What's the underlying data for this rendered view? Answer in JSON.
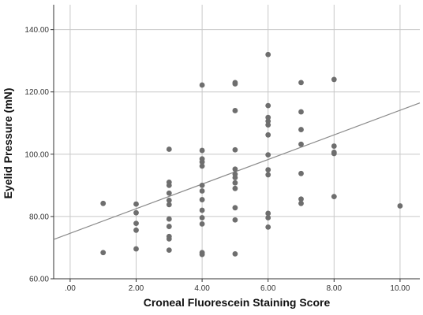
{
  "chart_data": {
    "type": "scatter",
    "title": "",
    "xlabel": "Croneal Fluorescein Staining Score",
    "ylabel": "Eyelid Pressure (mN)",
    "xlim": [
      -0.5,
      10.6
    ],
    "ylim": [
      60,
      148
    ],
    "x_ticks": [
      0,
      2,
      4,
      6,
      8,
      10
    ],
    "x_tick_labels": [
      ".00",
      "2.00",
      "4.00",
      "6.00",
      "8.00",
      "10.00"
    ],
    "y_ticks": [
      60,
      80,
      100,
      120,
      140
    ],
    "y_tick_labels": [
      "60.00",
      "80.00",
      "100.00",
      "120.00",
      "140.00"
    ],
    "grid": true,
    "point_color": "#6e6e6e",
    "line_color": "#8a8a8a",
    "fit_line": {
      "intercept": 74.6,
      "slope": 3.95
    },
    "points": [
      [
        1,
        84.2
      ],
      [
        1,
        68.4
      ],
      [
        2,
        84.0
      ],
      [
        2,
        81.2
      ],
      [
        2,
        77.8
      ],
      [
        2,
        75.6
      ],
      [
        2,
        69.6
      ],
      [
        3,
        101.6
      ],
      [
        3,
        91.0
      ],
      [
        3,
        90.0
      ],
      [
        3,
        87.5
      ],
      [
        3,
        85.2
      ],
      [
        3,
        83.8
      ],
      [
        3,
        79.2
      ],
      [
        3,
        76.8
      ],
      [
        3,
        73.6
      ],
      [
        3,
        72.8
      ],
      [
        3,
        69.2
      ],
      [
        4,
        122.2
      ],
      [
        4,
        101.2
      ],
      [
        4,
        98.5
      ],
      [
        4,
        97.5
      ],
      [
        4,
        96.2
      ],
      [
        4,
        90.0
      ],
      [
        4,
        88.2
      ],
      [
        4,
        85.4
      ],
      [
        4,
        82.0
      ],
      [
        4,
        79.6
      ],
      [
        4,
        77.6
      ],
      [
        4,
        68.4
      ],
      [
        4,
        67.8
      ],
      [
        5,
        123.0
      ],
      [
        5,
        122.6
      ],
      [
        5,
        114.0
      ],
      [
        5,
        101.4
      ],
      [
        5,
        95.2
      ],
      [
        5,
        93.6
      ],
      [
        5,
        92.5
      ],
      [
        5,
        90.8
      ],
      [
        5,
        89.0
      ],
      [
        5,
        82.8
      ],
      [
        5,
        78.9
      ],
      [
        5,
        68.0
      ],
      [
        6,
        132.0
      ],
      [
        6,
        115.6
      ],
      [
        6,
        111.8
      ],
      [
        6,
        110.6
      ],
      [
        6,
        109.4
      ],
      [
        6,
        106.2
      ],
      [
        6,
        99.8
      ],
      [
        6,
        95.0
      ],
      [
        6,
        93.4
      ],
      [
        6,
        81.0
      ],
      [
        6,
        79.6
      ],
      [
        6,
        76.6
      ],
      [
        7,
        123.0
      ],
      [
        7,
        113.6
      ],
      [
        7,
        107.9
      ],
      [
        7,
        103.2
      ],
      [
        7,
        93.8
      ],
      [
        7,
        85.6
      ],
      [
        7,
        84.2
      ],
      [
        8,
        124.0
      ],
      [
        8,
        102.6
      ],
      [
        8,
        100.6
      ],
      [
        8,
        100.2
      ],
      [
        8,
        86.4
      ],
      [
        10,
        83.4
      ]
    ]
  }
}
